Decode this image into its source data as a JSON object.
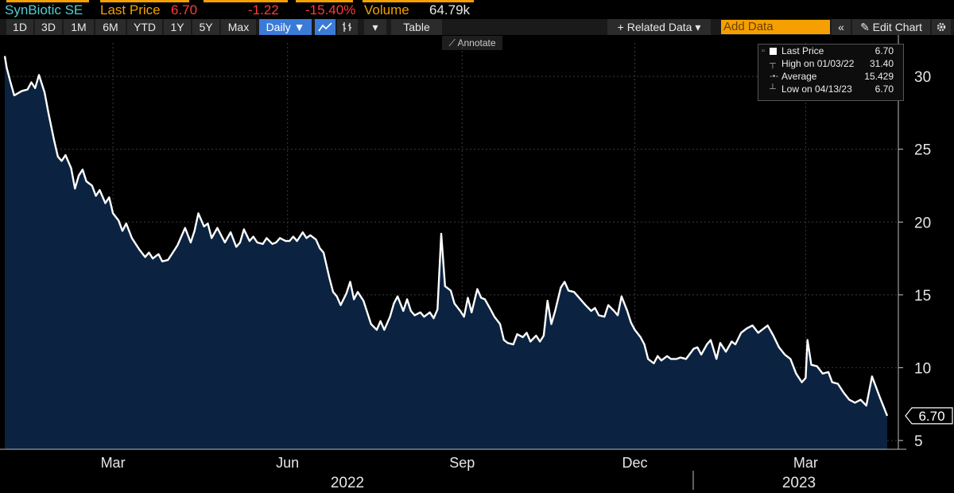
{
  "header": {
    "security": "SynBiotic SE",
    "last_price_label": "Last Price",
    "last_price": "6.70",
    "change": "-1.22",
    "change_pct": "-15.40%",
    "volume_label": "Volume",
    "volume": "64.79k",
    "colors": {
      "security": "#4fd0d6",
      "label": "#f5a000",
      "negative": "#ff3a3a",
      "value": "#e8e8e8"
    }
  },
  "toolbar": {
    "ranges": [
      "1D",
      "3D",
      "1M",
      "6M",
      "YTD",
      "1Y",
      "5Y",
      "Max"
    ],
    "frequency": "Daily ▼",
    "line_icon": "line-chart-icon",
    "bar_icon": "ohlc-bar-icon",
    "more": "▾",
    "table": "Table",
    "related_data": "+ Related Data ▾",
    "add_data_placeholder": "Add Data",
    "collapse": "«",
    "edit_chart": "✎ Edit Chart",
    "settings_icon": "gear-icon"
  },
  "annotate": "⟋ Annotate",
  "legend": {
    "items": [
      {
        "label": "Last Price",
        "value": "6.70"
      },
      {
        "label": "High on 01/03/22",
        "value": "31.40"
      },
      {
        "label": "Average",
        "value": "15.429"
      },
      {
        "label": "Low on 04/13/23",
        "value": "6.70"
      }
    ]
  },
  "chart_data": {
    "type": "area",
    "title": "",
    "ylabel": "",
    "ylim": [
      4.4,
      32.3
    ],
    "yticks": [
      5,
      10,
      15,
      20,
      25,
      30
    ],
    "x_month_ticks": [
      "Mar",
      "Jun",
      "Sep",
      "Dec",
      "Mar"
    ],
    "x_year_labels": [
      "2022",
      "2023"
    ],
    "last_value_label": "6.70",
    "colors": {
      "line": "#ffffff",
      "fill": "#0b2340",
      "grid": "#3a3a3a"
    },
    "series": [
      {
        "points": [
          [
            "2022-01-03",
            31.4
          ],
          [
            "2022-01-04",
            30.6
          ],
          [
            "2022-01-06",
            29.6
          ],
          [
            "2022-01-08",
            28.7
          ],
          [
            "2022-01-12",
            29.0
          ],
          [
            "2022-01-15",
            29.1
          ],
          [
            "2022-01-17",
            29.6
          ],
          [
            "2022-01-19",
            29.2
          ],
          [
            "2022-01-21",
            30.1
          ],
          [
            "2022-01-24",
            28.9
          ],
          [
            "2022-01-26",
            27.5
          ],
          [
            "2022-01-29",
            25.6
          ],
          [
            "2022-01-31",
            24.5
          ],
          [
            "2022-02-02",
            24.2
          ],
          [
            "2022-02-04",
            24.6
          ],
          [
            "2022-02-07",
            23.7
          ],
          [
            "2022-02-09",
            22.3
          ],
          [
            "2022-02-11",
            23.2
          ],
          [
            "2022-02-13",
            23.6
          ],
          [
            "2022-02-15",
            22.8
          ],
          [
            "2022-02-18",
            22.5
          ],
          [
            "2022-02-20",
            21.8
          ],
          [
            "2022-02-22",
            22.2
          ],
          [
            "2022-02-25",
            21.3
          ],
          [
            "2022-02-27",
            21.7
          ],
          [
            "2022-03-01",
            20.6
          ],
          [
            "2022-03-04",
            20.1
          ],
          [
            "2022-03-06",
            19.4
          ],
          [
            "2022-03-08",
            19.9
          ],
          [
            "2022-03-11",
            18.9
          ],
          [
            "2022-03-13",
            18.5
          ],
          [
            "2022-03-15",
            18.1
          ],
          [
            "2022-03-18",
            17.6
          ],
          [
            "2022-03-20",
            17.9
          ],
          [
            "2022-03-22",
            17.5
          ],
          [
            "2022-03-25",
            17.8
          ],
          [
            "2022-03-27",
            17.3
          ],
          [
            "2022-03-30",
            17.4
          ],
          [
            "2022-04-01",
            17.8
          ],
          [
            "2022-04-04",
            18.4
          ],
          [
            "2022-04-06",
            19.0
          ],
          [
            "2022-04-08",
            19.6
          ],
          [
            "2022-04-11",
            18.6
          ],
          [
            "2022-04-13",
            19.4
          ],
          [
            "2022-04-15",
            20.6
          ],
          [
            "2022-04-18",
            19.7
          ],
          [
            "2022-04-20",
            19.9
          ],
          [
            "2022-04-22",
            18.9
          ],
          [
            "2022-04-25",
            19.6
          ],
          [
            "2022-04-27",
            19.1
          ],
          [
            "2022-04-29",
            18.6
          ],
          [
            "2022-05-02",
            19.3
          ],
          [
            "2022-05-05",
            18.3
          ],
          [
            "2022-05-07",
            18.6
          ],
          [
            "2022-05-09",
            19.5
          ],
          [
            "2022-05-12",
            18.7
          ],
          [
            "2022-05-14",
            19.0
          ],
          [
            "2022-05-16",
            18.6
          ],
          [
            "2022-05-19",
            18.5
          ],
          [
            "2022-05-21",
            18.9
          ],
          [
            "2022-05-24",
            18.5
          ],
          [
            "2022-05-26",
            18.6
          ],
          [
            "2022-05-28",
            18.9
          ],
          [
            "2022-05-31",
            18.7
          ],
          [
            "2022-06-02",
            18.7
          ],
          [
            "2022-06-04",
            19.0
          ],
          [
            "2022-06-06",
            18.7
          ],
          [
            "2022-06-09",
            19.3
          ],
          [
            "2022-06-11",
            18.9
          ],
          [
            "2022-06-13",
            19.1
          ],
          [
            "2022-06-16",
            18.8
          ],
          [
            "2022-06-18",
            18.2
          ],
          [
            "2022-06-20",
            17.9
          ],
          [
            "2022-06-23",
            16.2
          ],
          [
            "2022-06-25",
            15.2
          ],
          [
            "2022-06-27",
            14.9
          ],
          [
            "2022-06-29",
            14.3
          ],
          [
            "2022-07-02",
            15.1
          ],
          [
            "2022-07-04",
            15.9
          ],
          [
            "2022-07-06",
            14.7
          ],
          [
            "2022-07-08",
            15.2
          ],
          [
            "2022-07-11",
            14.6
          ],
          [
            "2022-07-13",
            13.8
          ],
          [
            "2022-07-15",
            13.0
          ],
          [
            "2022-07-18",
            12.6
          ],
          [
            "2022-07-20",
            13.2
          ],
          [
            "2022-07-22",
            12.6
          ],
          [
            "2022-07-25",
            13.5
          ],
          [
            "2022-07-27",
            14.4
          ],
          [
            "2022-07-29",
            14.9
          ],
          [
            "2022-08-01",
            13.9
          ],
          [
            "2022-08-03",
            14.7
          ],
          [
            "2022-08-05",
            13.9
          ],
          [
            "2022-08-07",
            13.6
          ],
          [
            "2022-08-10",
            13.8
          ],
          [
            "2022-08-12",
            13.5
          ],
          [
            "2022-08-15",
            13.8
          ],
          [
            "2022-08-17",
            13.4
          ],
          [
            "2022-08-19",
            14.0
          ],
          [
            "2022-08-21",
            19.2
          ],
          [
            "2022-08-23",
            15.6
          ],
          [
            "2022-08-26",
            15.3
          ],
          [
            "2022-08-28",
            14.4
          ],
          [
            "2022-08-31",
            13.9
          ],
          [
            "2022-09-02",
            13.5
          ],
          [
            "2022-09-04",
            14.8
          ],
          [
            "2022-09-06",
            13.8
          ],
          [
            "2022-09-09",
            15.4
          ],
          [
            "2022-09-11",
            14.8
          ],
          [
            "2022-09-13",
            14.7
          ],
          [
            "2022-09-16",
            14.0
          ],
          [
            "2022-09-18",
            13.5
          ],
          [
            "2022-09-21",
            13.0
          ],
          [
            "2022-09-23",
            11.9
          ],
          [
            "2022-09-25",
            11.7
          ],
          [
            "2022-09-28",
            11.6
          ],
          [
            "2022-09-30",
            12.3
          ],
          [
            "2022-10-03",
            12.1
          ],
          [
            "2022-10-05",
            12.4
          ],
          [
            "2022-10-07",
            11.8
          ],
          [
            "2022-10-10",
            12.2
          ],
          [
            "2022-10-12",
            11.8
          ],
          [
            "2022-10-14",
            12.2
          ],
          [
            "2022-10-16",
            14.6
          ],
          [
            "2022-10-18",
            13.0
          ],
          [
            "2022-10-20",
            13.9
          ],
          [
            "2022-10-23",
            15.5
          ],
          [
            "2022-10-25",
            15.9
          ],
          [
            "2022-10-27",
            15.3
          ],
          [
            "2022-10-30",
            15.2
          ],
          [
            "2022-11-01",
            14.9
          ],
          [
            "2022-11-03",
            14.6
          ],
          [
            "2022-11-05",
            14.3
          ],
          [
            "2022-11-08",
            13.9
          ],
          [
            "2022-11-10",
            14.1
          ],
          [
            "2022-11-12",
            13.6
          ],
          [
            "2022-11-15",
            13.5
          ],
          [
            "2022-11-17",
            14.3
          ],
          [
            "2022-11-20",
            13.9
          ],
          [
            "2022-11-22",
            13.6
          ],
          [
            "2022-11-24",
            14.9
          ],
          [
            "2022-11-27",
            13.9
          ],
          [
            "2022-11-29",
            13.1
          ],
          [
            "2022-12-01",
            12.6
          ],
          [
            "2022-12-04",
            12.1
          ],
          [
            "2022-12-06",
            11.6
          ],
          [
            "2022-12-08",
            10.6
          ],
          [
            "2022-12-11",
            10.3
          ],
          [
            "2022-12-13",
            10.8
          ],
          [
            "2022-12-15",
            10.5
          ],
          [
            "2022-12-18",
            10.8
          ],
          [
            "2022-12-20",
            10.6
          ],
          [
            "2022-12-23",
            10.6
          ],
          [
            "2022-12-25",
            10.7
          ],
          [
            "2022-12-28",
            10.6
          ],
          [
            "2023-01-01",
            11.3
          ],
          [
            "2023-01-03",
            11.4
          ],
          [
            "2023-01-05",
            10.9
          ],
          [
            "2023-01-08",
            11.6
          ],
          [
            "2023-01-10",
            11.9
          ],
          [
            "2023-01-13",
            10.6
          ],
          [
            "2023-01-15",
            11.7
          ],
          [
            "2023-01-18",
            11.1
          ],
          [
            "2023-01-21",
            11.8
          ],
          [
            "2023-01-23",
            11.6
          ],
          [
            "2023-01-26",
            12.4
          ],
          [
            "2023-01-29",
            12.7
          ],
          [
            "2023-02-01",
            12.9
          ],
          [
            "2023-02-04",
            12.4
          ],
          [
            "2023-02-06",
            12.6
          ],
          [
            "2023-02-09",
            12.9
          ],
          [
            "2023-02-12",
            12.2
          ],
          [
            "2023-02-15",
            11.4
          ],
          [
            "2023-02-18",
            10.9
          ],
          [
            "2023-02-21",
            10.6
          ],
          [
            "2023-02-24",
            9.6
          ],
          [
            "2023-02-27",
            9.0
          ],
          [
            "2023-03-01",
            9.3
          ],
          [
            "2023-03-02",
            11.9
          ],
          [
            "2023-03-04",
            10.2
          ],
          [
            "2023-03-07",
            10.1
          ],
          [
            "2023-03-10",
            9.6
          ],
          [
            "2023-03-13",
            9.7
          ],
          [
            "2023-03-15",
            9.0
          ],
          [
            "2023-03-18",
            8.9
          ],
          [
            "2023-03-21",
            8.3
          ],
          [
            "2023-03-24",
            7.8
          ],
          [
            "2023-03-27",
            7.6
          ],
          [
            "2023-03-30",
            7.8
          ],
          [
            "2023-04-02",
            7.4
          ],
          [
            "2023-04-05",
            9.4
          ],
          [
            "2023-04-09",
            8.0
          ],
          [
            "2023-04-13",
            6.7
          ]
        ]
      }
    ]
  }
}
